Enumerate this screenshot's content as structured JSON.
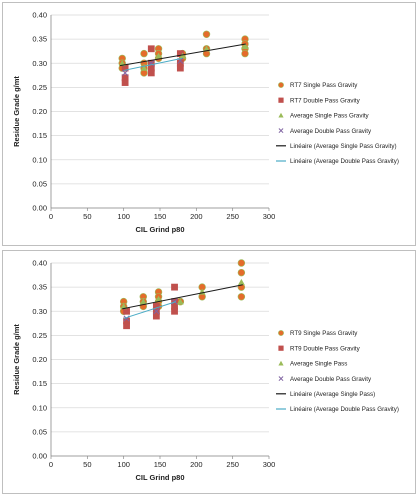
{
  "colors": {
    "single_marker": "#c0504d",
    "single_marker_fill_top": "#9bbb59",
    "rt_single_fill": "#e46c2b",
    "double_marker": "#c0504d",
    "avg_single": "#9bbb59",
    "avg_double": "#8064a2",
    "trend_single": "#1a1a1a",
    "trend_double": "#4bacc6",
    "grid": "#d9d9d9"
  },
  "chart_data": [
    {
      "type": "scatter",
      "xlabel": "CIL Grind p80",
      "ylabel": "Residue Grade g/mt",
      "xlim": [
        0,
        300
      ],
      "ylim": [
        0,
        0.4
      ],
      "xticks": [
        "0",
        "50",
        "100",
        "150",
        "200",
        "250",
        "300"
      ],
      "yticks": [
        "0.00",
        "0.05",
        "0.10",
        "0.15",
        "0.20",
        "0.25",
        "0.30",
        "0.35",
        "0.40"
      ],
      "grid": "horizontal",
      "legend_position": "right",
      "series": [
        {
          "name": "RT7 Single Pass Gravity",
          "marker": "circle",
          "points": [
            [
              98,
              0.31
            ],
            [
              98,
              0.3
            ],
            [
              98,
              0.29
            ],
            [
              128,
              0.32
            ],
            [
              128,
              0.3
            ],
            [
              128,
              0.29
            ],
            [
              128,
              0.28
            ],
            [
              148,
              0.33
            ],
            [
              148,
              0.32
            ],
            [
              148,
              0.31
            ],
            [
              181,
              0.31
            ],
            [
              181,
              0.32
            ],
            [
              214,
              0.36
            ],
            [
              214,
              0.33
            ],
            [
              214,
              0.32
            ],
            [
              267,
              0.35
            ],
            [
              267,
              0.34
            ],
            [
              267,
              0.33
            ],
            [
              267,
              0.32
            ]
          ]
        },
        {
          "name": "RT7 Double Pass Gravity",
          "marker": "square",
          "points": [
            [
              102,
              0.29
            ],
            [
              102,
              0.27
            ],
            [
              102,
              0.26
            ],
            [
              138,
              0.33
            ],
            [
              138,
              0.3
            ],
            [
              138,
              0.29
            ],
            [
              138,
              0.28
            ],
            [
              178,
              0.32
            ],
            [
              178,
              0.3
            ],
            [
              178,
              0.29
            ]
          ]
        },
        {
          "name": "Average Single Pass Gravity",
          "marker": "triangle",
          "points": [
            [
              98,
              0.3
            ],
            [
              128,
              0.29
            ],
            [
              148,
              0.315
            ],
            [
              181,
              0.315
            ],
            [
              214,
              0.33
            ],
            [
              267,
              0.335
            ]
          ]
        },
        {
          "name": "Average Double Pass Gravity",
          "marker": "x",
          "points": [
            [
              102,
              0.28
            ],
            [
              138,
              0.3
            ],
            [
              178,
              0.305
            ]
          ]
        },
        {
          "name": "Linéaire (Average Single Pass Gravity)",
          "type": "line",
          "points": [
            [
              95,
              0.295
            ],
            [
              268,
              0.34
            ]
          ]
        },
        {
          "name": "Linéaire (Average Double Pass Gravity)",
          "type": "line",
          "points": [
            [
              100,
              0.285
            ],
            [
              180,
              0.31
            ]
          ]
        }
      ]
    },
    {
      "type": "scatter",
      "xlabel": "CIL Grind p80",
      "ylabel": "Residue Grade g/mt",
      "xlim": [
        0,
        300
      ],
      "ylim": [
        0,
        0.4
      ],
      "xticks": [
        "0",
        "50",
        "100",
        "150",
        "200",
        "250",
        "300"
      ],
      "yticks": [
        "0.00",
        "0.05",
        "0.10",
        "0.15",
        "0.20",
        "0.25",
        "0.30",
        "0.35",
        "0.40"
      ],
      "grid": "horizontal",
      "legend_position": "right",
      "series": [
        {
          "name": "RT9 Single Pass Gravity",
          "marker": "circle",
          "points": [
            [
              100,
              0.32
            ],
            [
              100,
              0.31
            ],
            [
              100,
              0.3
            ],
            [
              127,
              0.33
            ],
            [
              127,
              0.32
            ],
            [
              127,
              0.31
            ],
            [
              148,
              0.34
            ],
            [
              148,
              0.33
            ],
            [
              148,
              0.32
            ],
            [
              148,
              0.31
            ],
            [
              178,
              0.32
            ],
            [
              178,
              0.32
            ],
            [
              208,
              0.35
            ],
            [
              208,
              0.33
            ],
            [
              262,
              0.4
            ],
            [
              262,
              0.38
            ],
            [
              262,
              0.35
            ],
            [
              262,
              0.33
            ]
          ]
        },
        {
          "name": "RT9 Double Pass Gravity",
          "marker": "square",
          "points": [
            [
              104,
              0.3
            ],
            [
              104,
              0.28
            ],
            [
              104,
              0.27
            ],
            [
              145,
              0.31
            ],
            [
              145,
              0.3
            ],
            [
              145,
              0.29
            ],
            [
              170,
              0.35
            ],
            [
              170,
              0.32
            ],
            [
              170,
              0.31
            ],
            [
              170,
              0.3
            ]
          ]
        },
        {
          "name": "Average Single Pass",
          "marker": "triangle",
          "points": [
            [
              100,
              0.31
            ],
            [
              127,
              0.32
            ],
            [
              148,
              0.325
            ],
            [
              178,
              0.32
            ],
            [
              208,
              0.34
            ],
            [
              262,
              0.36
            ]
          ]
        },
        {
          "name": "Average Double Pass Gravity",
          "marker": "x",
          "points": [
            [
              104,
              0.285
            ],
            [
              145,
              0.3
            ],
            [
              170,
              0.32
            ]
          ]
        },
        {
          "name": "Linéaire (Average Single Pass)",
          "type": "line",
          "points": [
            [
              98,
              0.305
            ],
            [
              264,
              0.355
            ]
          ]
        },
        {
          "name": "Linéaire (Average Double Pass Gravity)",
          "type": "line",
          "points": [
            [
              100,
              0.285
            ],
            [
              172,
              0.32
            ]
          ]
        }
      ]
    }
  ]
}
